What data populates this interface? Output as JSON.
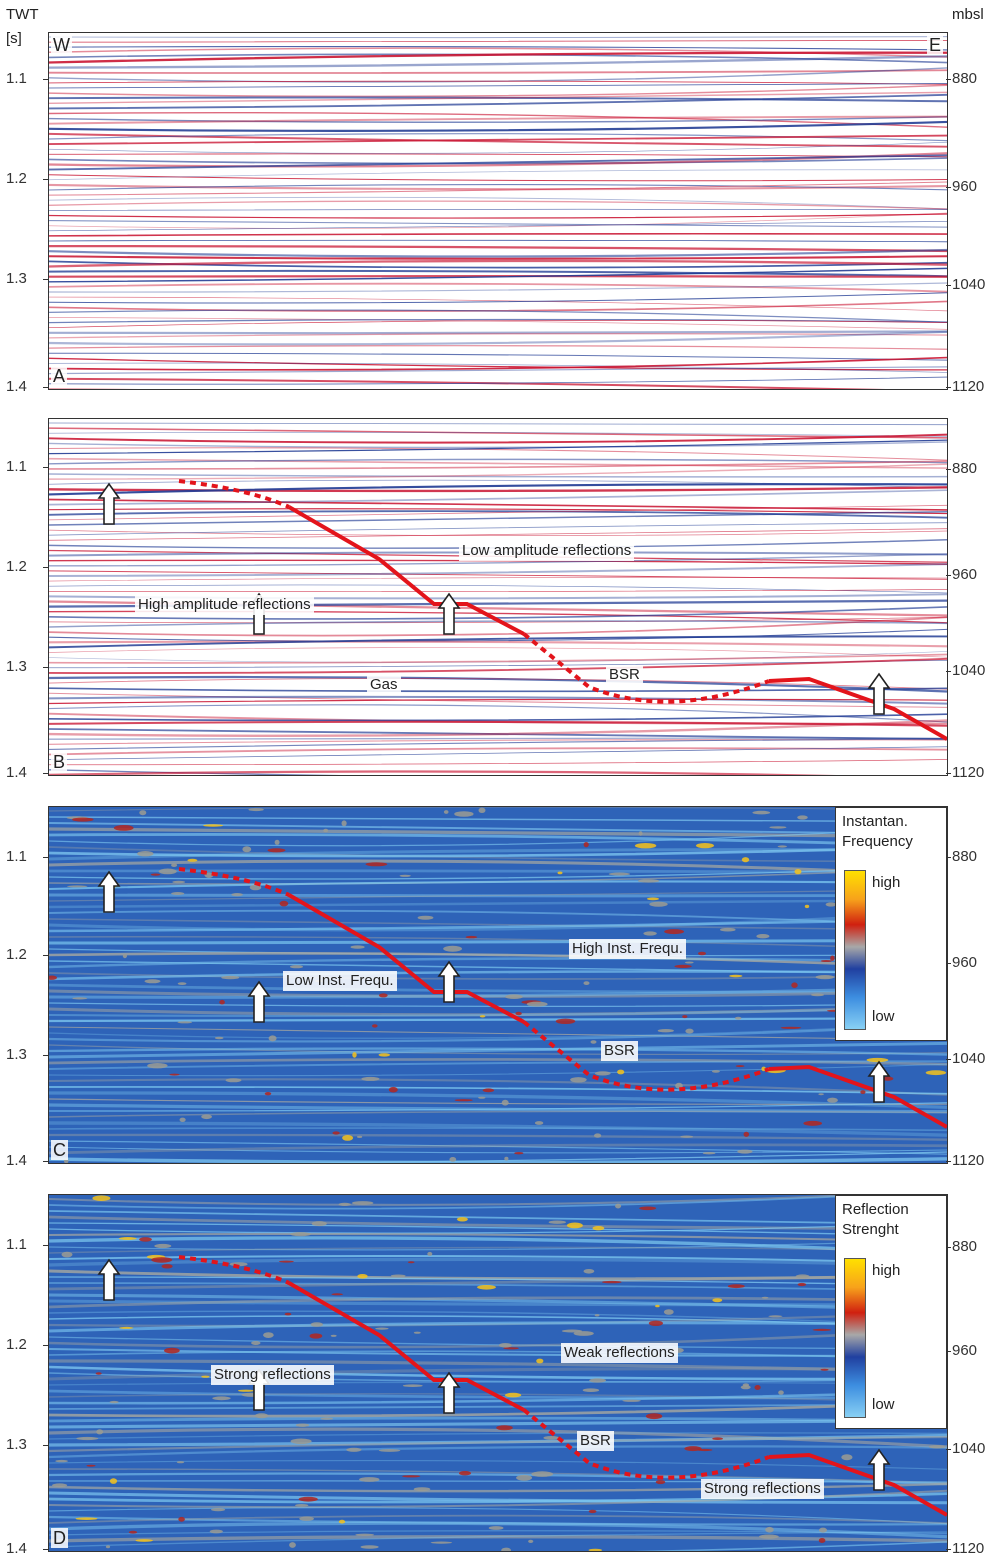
{
  "axis": {
    "left_header": "TWT",
    "left_unit": "[s]",
    "right_header": "mbsl",
    "left_ticks": [
      "1.1",
      "1.2",
      "1.3",
      "1.4"
    ],
    "right_ticks": [
      "880",
      "960",
      "1040",
      "1120"
    ],
    "west": "W",
    "east": "E"
  },
  "panels": [
    {
      "id": "A",
      "label": "A",
      "type": "seismic"
    },
    {
      "id": "B",
      "label": "B",
      "type": "seismic",
      "annotations": {
        "low_amp": "Low amplitude reflections",
        "high_amp": "High amplitude reflections",
        "gas": "Gas",
        "bsr": "BSR"
      }
    },
    {
      "id": "C",
      "label": "C",
      "type": "frequency",
      "legend": {
        "title_line1": "Instantan.",
        "title_line2": "Frequency",
        "high": "high",
        "low": "low"
      },
      "annotations": {
        "high_inst": "High Inst. Frequ.",
        "low_inst": "Low Inst. Frequ.",
        "bsr": "BSR"
      }
    },
    {
      "id": "D",
      "label": "D",
      "type": "strength",
      "legend": {
        "title_line1": "Reflection",
        "title_line2": "Strenght",
        "high": "high",
        "low": "low"
      },
      "annotations": {
        "strong1": "Strong reflections",
        "weak": "Weak reflections",
        "bsr": "BSR",
        "strong2": "Strong reflections"
      }
    }
  ],
  "colors": {
    "bsr_line": "#e3141b",
    "seismic_red": "#c8102e",
    "seismic_blue": "#1f3a93",
    "attr_bg": "#2e63b8",
    "attr_light": "#7ec8f0"
  }
}
